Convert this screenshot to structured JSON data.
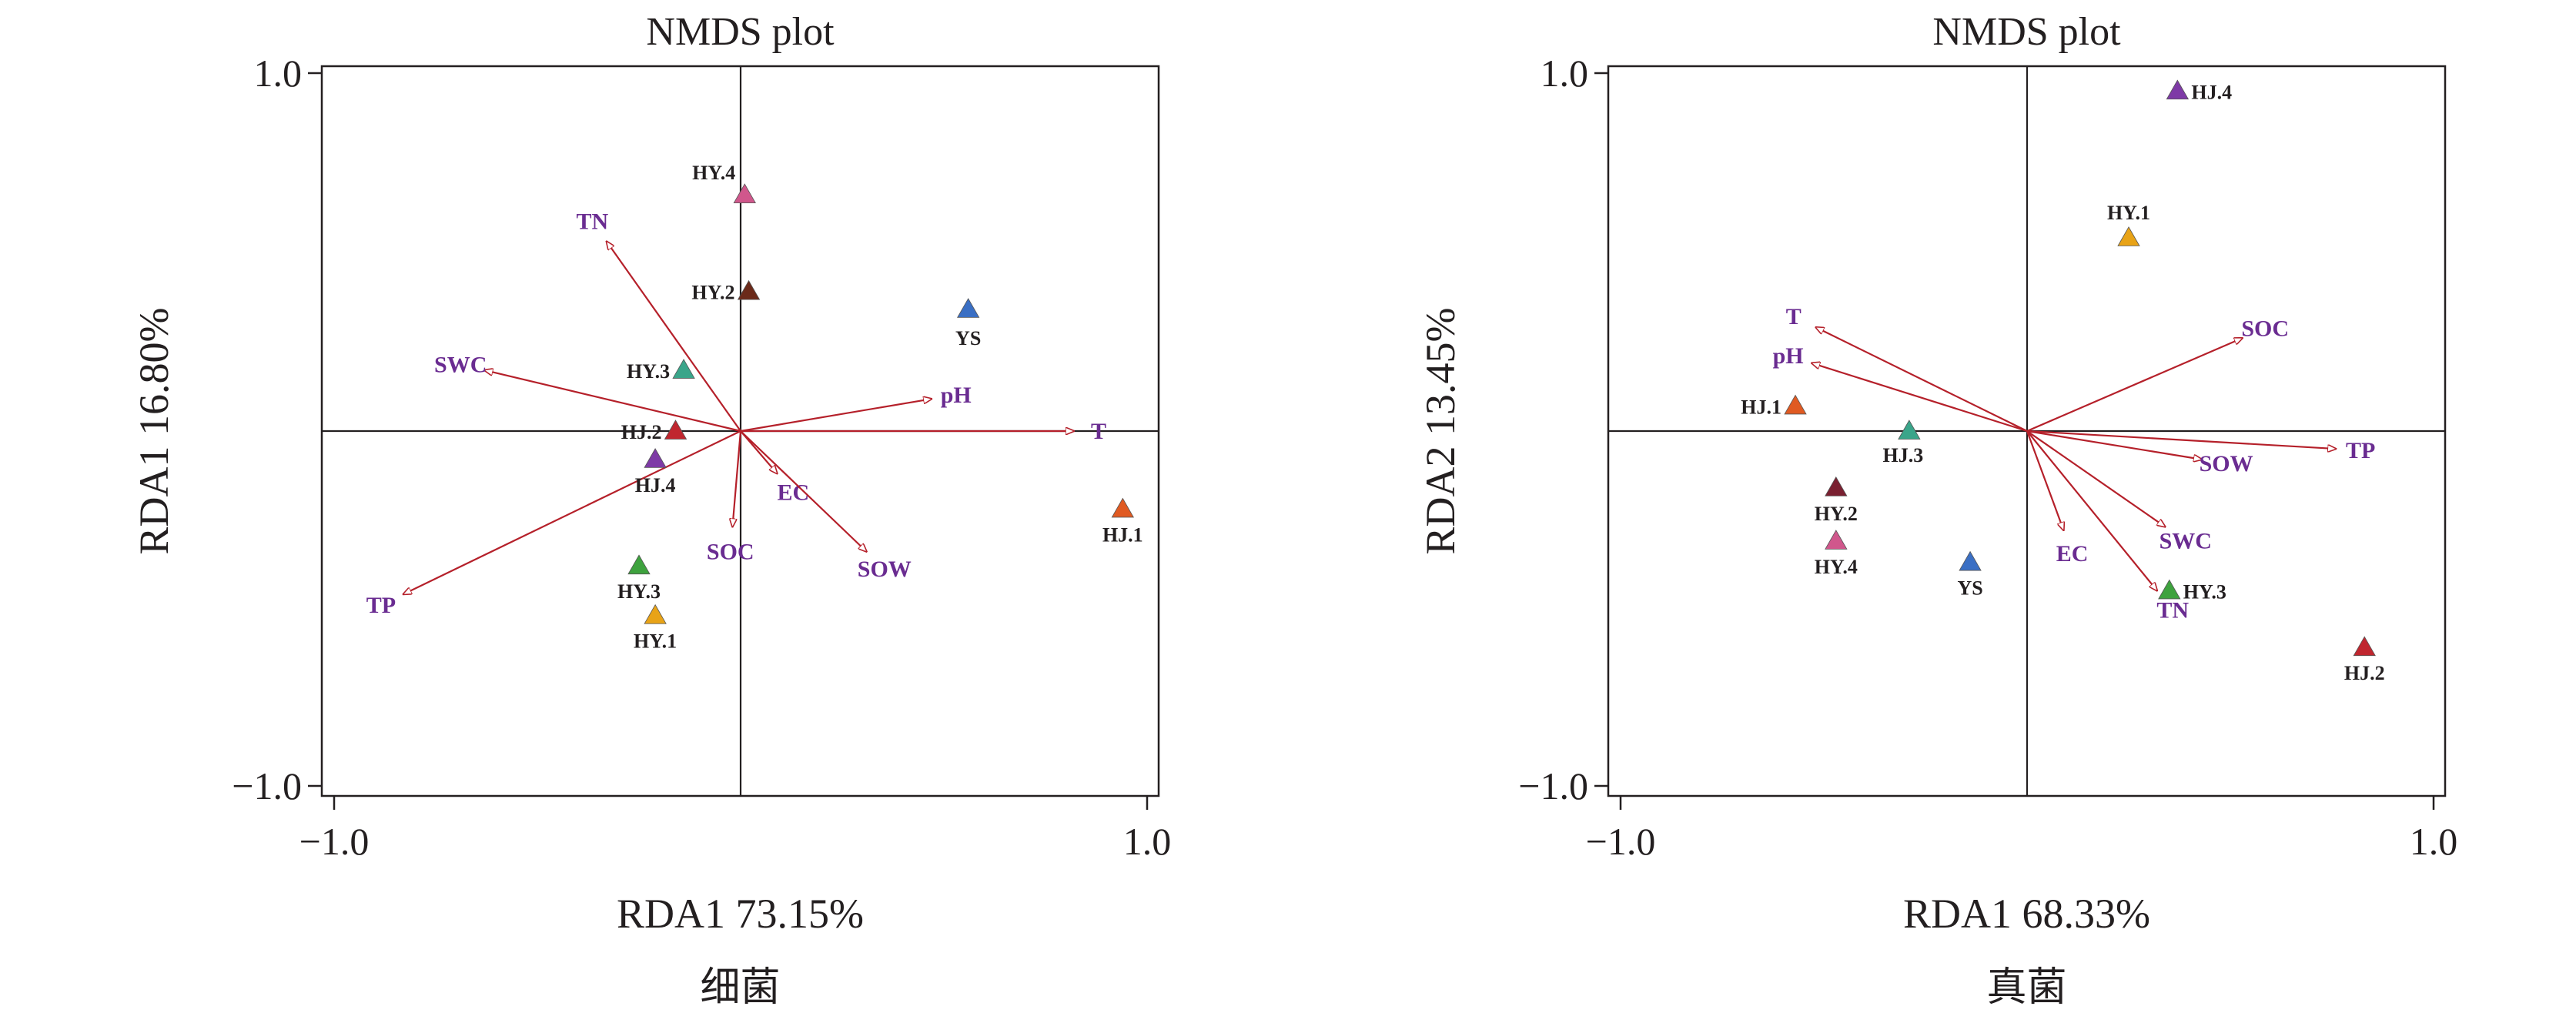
{
  "colors": {
    "arrow": "#b5202a",
    "env_text": "#6a2c91",
    "frame": "#231f20"
  },
  "chart_data": [
    {
      "type": "scatter",
      "title": "NMDS plot",
      "xlabel": "RDA1 73.15%",
      "ylabel": "RDA1 16.80%",
      "caption": "细菌",
      "xlim": [
        -1.0,
        1.0
      ],
      "ylim": [
        -1.0,
        1.0
      ],
      "x_ticks": [
        "−1.0",
        "1.0"
      ],
      "y_ticks": [
        "1.0",
        "−1.0"
      ],
      "vectors": [
        {
          "name": "TN",
          "x": -0.33,
          "y": 0.53
        },
        {
          "name": "SWC",
          "x": -0.63,
          "y": 0.17
        },
        {
          "name": "pH",
          "x": 0.47,
          "y": 0.09
        },
        {
          "name": "T",
          "x": 0.82,
          "y": 0.0
        },
        {
          "name": "EC",
          "x": 0.09,
          "y": -0.12
        },
        {
          "name": "SOC",
          "x": -0.02,
          "y": -0.27
        },
        {
          "name": "SOW",
          "x": 0.31,
          "y": -0.34
        },
        {
          "name": "TP",
          "x": -0.83,
          "y": -0.46
        }
      ],
      "points": [
        {
          "name": "HY.4",
          "x": 0.01,
          "y": 0.66,
          "color": "#d0578c"
        },
        {
          "name": "HY.2",
          "x": 0.02,
          "y": 0.39,
          "color": "#6b2a1a"
        },
        {
          "name": "YS",
          "x": 0.56,
          "y": 0.34,
          "color": "#3a6fc4"
        },
        {
          "name": "HY.3",
          "x": -0.14,
          "y": 0.17,
          "color": "#3aa58a"
        },
        {
          "name": "HJ.2",
          "x": -0.16,
          "y": 0.0,
          "color": "#c0262f"
        },
        {
          "name": "HJ.4",
          "x": -0.21,
          "y": -0.08,
          "color": "#7e3aa6"
        },
        {
          "name": "HJ.1",
          "x": 0.94,
          "y": -0.22,
          "color": "#e05a22"
        },
        {
          "name": "HY.3",
          "x": -0.25,
          "y": -0.38,
          "color": "#3ea23e"
        },
        {
          "name": "HY.1",
          "x": -0.21,
          "y": -0.52,
          "color": "#e8a317"
        }
      ]
    },
    {
      "type": "scatter",
      "title": "NMDS plot",
      "xlabel": "RDA1 68.33%",
      "ylabel": "RDA2 13.45%",
      "caption": "真菌",
      "xlim": [
        -1.0,
        1.0
      ],
      "ylim": [
        -1.0,
        1.0
      ],
      "x_ticks": [
        "−1.0",
        "1.0"
      ],
      "y_ticks": [
        "1.0",
        "−1.0"
      ],
      "vectors": [
        {
          "name": "T",
          "x": -0.52,
          "y": 0.29
        },
        {
          "name": "pH",
          "x": -0.53,
          "y": 0.19
        },
        {
          "name": "SOC",
          "x": 0.53,
          "y": 0.26
        },
        {
          "name": "SOW",
          "x": 0.43,
          "y": -0.08
        },
        {
          "name": "TP",
          "x": 0.76,
          "y": -0.05
        },
        {
          "name": "SWC",
          "x": 0.34,
          "y": -0.27
        },
        {
          "name": "EC",
          "x": 0.09,
          "y": -0.28
        },
        {
          "name": "TN",
          "x": 0.32,
          "y": -0.45
        }
      ],
      "points": [
        {
          "name": "HJ.4",
          "x": 0.37,
          "y": 0.95,
          "color": "#7e3aa6"
        },
        {
          "name": "HY.1",
          "x": 0.25,
          "y": 0.54,
          "color": "#e8a317"
        },
        {
          "name": "HJ.1",
          "x": -0.57,
          "y": 0.07,
          "color": "#e05a22"
        },
        {
          "name": "HJ.3",
          "x": -0.29,
          "y": 0.0,
          "color": "#3aa58a"
        },
        {
          "name": "HY.2",
          "x": -0.47,
          "y": -0.16,
          "color": "#7a2031"
        },
        {
          "name": "HY.4",
          "x": -0.47,
          "y": -0.31,
          "color": "#d0578c"
        },
        {
          "name": "YS",
          "x": -0.14,
          "y": -0.37,
          "color": "#3a6fc4"
        },
        {
          "name": "HY.3",
          "x": 0.35,
          "y": -0.45,
          "color": "#3ea23e"
        },
        {
          "name": "HJ.2",
          "x": 0.83,
          "y": -0.61,
          "color": "#c0262f"
        }
      ]
    }
  ]
}
